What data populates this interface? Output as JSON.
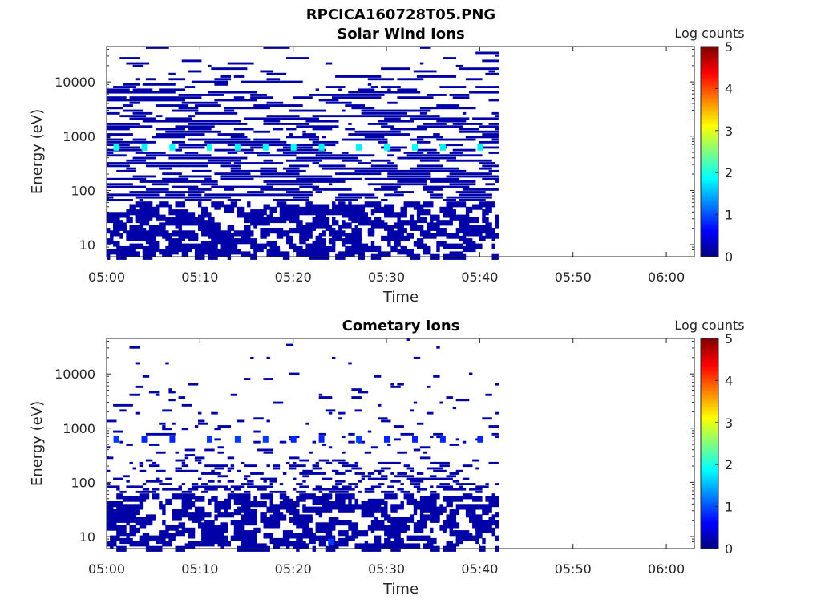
{
  "figure_title": "RPCICA160728T05.PNG",
  "chart_data": [
    {
      "type": "heatmap",
      "title": "Solar Wind Ions",
      "xlabel": "Time",
      "ylabel": "Energy (eV)",
      "x_scale": "time",
      "y_scale": "log",
      "xlim": [
        "05:00",
        "06:03"
      ],
      "ylim": [
        6,
        45000
      ],
      "x_ticks": [
        "05:00",
        "05:10",
        "05:20",
        "05:30",
        "05:40",
        "05:50",
        "06:00"
      ],
      "y_ticks": [
        "10",
        "100",
        "1000",
        "10000"
      ],
      "data_time_range": [
        "05:00",
        "05:42"
      ],
      "colorbar": {
        "label": "Log counts",
        "min": 0,
        "max": 5,
        "ticks": [
          "0",
          "1",
          "2",
          "3",
          "4",
          "5"
        ],
        "colormap": "jet"
      },
      "typical_log_counts": 0.2,
      "peaks": [
        {
          "time": "05:01",
          "energy": 620,
          "log_counts": 1.9
        },
        {
          "time": "05:04",
          "energy": 620,
          "log_counts": 1.8
        },
        {
          "time": "05:07",
          "energy": 620,
          "log_counts": 1.9
        },
        {
          "time": "05:11",
          "energy": 620,
          "log_counts": 1.9
        },
        {
          "time": "05:14",
          "energy": 620,
          "log_counts": 1.8
        },
        {
          "time": "05:17",
          "energy": 620,
          "log_counts": 1.9
        },
        {
          "time": "05:20",
          "energy": 620,
          "log_counts": 1.9
        },
        {
          "time": "05:23",
          "energy": 620,
          "log_counts": 1.8
        },
        {
          "time": "05:27",
          "energy": 620,
          "log_counts": 1.8
        },
        {
          "time": "05:30",
          "energy": 620,
          "log_counts": 1.9
        },
        {
          "time": "05:33",
          "energy": 620,
          "log_counts": 1.9
        },
        {
          "time": "05:36",
          "energy": 620,
          "log_counts": 1.8
        },
        {
          "time": "05:40",
          "energy": 620,
          "log_counts": 1.8
        }
      ]
    },
    {
      "type": "heatmap",
      "title": "Cometary Ions",
      "xlabel": "Time",
      "ylabel": "Energy (eV)",
      "x_scale": "time",
      "y_scale": "log",
      "xlim": [
        "05:00",
        "06:03"
      ],
      "ylim": [
        6,
        45000
      ],
      "x_ticks": [
        "05:00",
        "05:10",
        "05:20",
        "05:30",
        "05:40",
        "05:50",
        "06:00"
      ],
      "y_ticks": [
        "10",
        "100",
        "1000",
        "10000"
      ],
      "data_time_range": [
        "05:00",
        "05:42"
      ],
      "colorbar": {
        "label": "Log counts",
        "min": 0,
        "max": 5,
        "ticks": [
          "0",
          "1",
          "2",
          "3",
          "4",
          "5"
        ],
        "colormap": "jet"
      },
      "typical_log_counts": 0.2,
      "peaks": [
        {
          "time": "05:01",
          "energy": 620,
          "log_counts": 0.9
        },
        {
          "time": "05:04",
          "energy": 620,
          "log_counts": 0.8
        },
        {
          "time": "05:07",
          "energy": 620,
          "log_counts": 0.8
        },
        {
          "time": "05:11",
          "energy": 620,
          "log_counts": 0.9
        },
        {
          "time": "05:14",
          "energy": 620,
          "log_counts": 0.9
        },
        {
          "time": "05:17",
          "energy": 620,
          "log_counts": 0.9
        },
        {
          "time": "05:20",
          "energy": 620,
          "log_counts": 0.8
        },
        {
          "time": "05:23",
          "energy": 620,
          "log_counts": 0.8
        },
        {
          "time": "05:27",
          "energy": 620,
          "log_counts": 0.9
        },
        {
          "time": "05:30",
          "energy": 620,
          "log_counts": 0.8
        },
        {
          "time": "05:33",
          "energy": 620,
          "log_counts": 0.8
        },
        {
          "time": "05:36",
          "energy": 620,
          "log_counts": 0.8
        },
        {
          "time": "05:40",
          "energy": 620,
          "log_counts": 0.8
        },
        {
          "time": "05:24",
          "energy": 8,
          "log_counts": 0.9
        }
      ]
    }
  ]
}
